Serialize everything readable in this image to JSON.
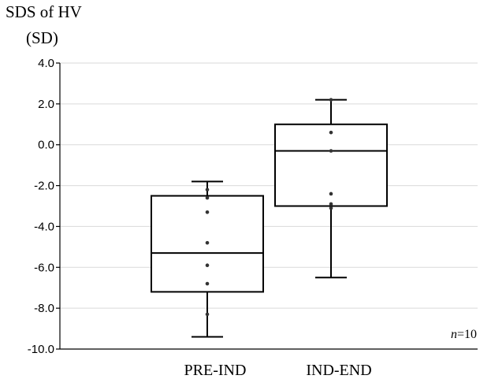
{
  "chart_data": {
    "type": "box",
    "ylabel_lines": [
      "SDS of HV",
      "(SD)"
    ],
    "ylim": [
      -10.0,
      4.0
    ],
    "yticks": [
      4.0,
      2.0,
      0.0,
      -2.0,
      -4.0,
      -6.0,
      -8.0,
      -10.0
    ],
    "ytick_labels": [
      "4.0",
      "2.0",
      "0.0",
      "-2.0",
      "-4.0",
      "-6.0",
      "-8.0",
      "-10.0"
    ],
    "grid": true,
    "categories": [
      "PRE-IND",
      "IND-END"
    ],
    "boxes": [
      {
        "category": "PRE-IND",
        "min": -9.4,
        "q1": -7.2,
        "median": -5.3,
        "q3": -2.5,
        "max": -1.8,
        "points": [
          -2.2,
          -2.6,
          -3.3,
          -4.8,
          -5.9,
          -6.8,
          -8.3
        ]
      },
      {
        "category": "IND-END",
        "min": -6.5,
        "q1": -3.0,
        "median": -0.3,
        "q3": 1.0,
        "max": 2.2,
        "points": [
          2.2,
          0.6,
          -0.3,
          -2.4,
          -2.9,
          -3.1
        ]
      }
    ],
    "annotation": {
      "italic": "n",
      "rest": "=10"
    }
  }
}
